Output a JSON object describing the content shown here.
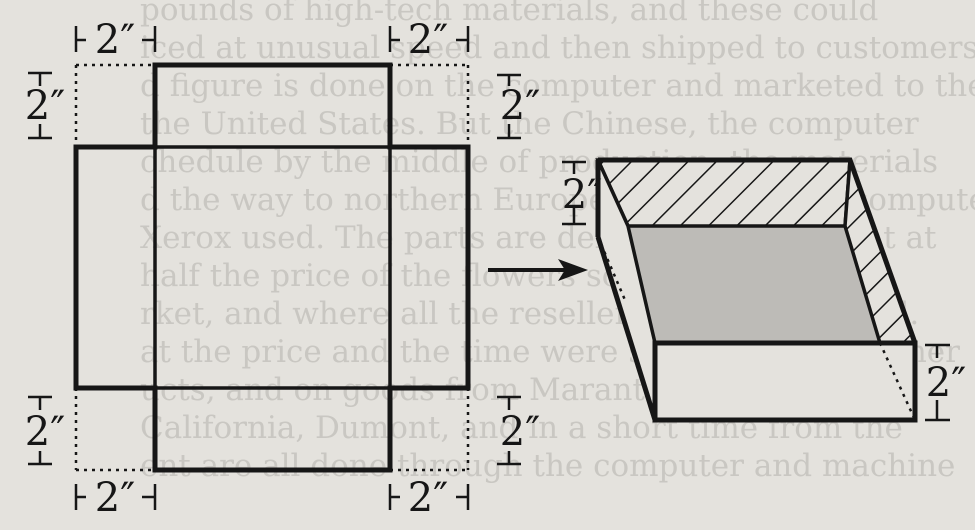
{
  "labels": {
    "top_left_width": "2″",
    "top_right_width": "2″",
    "left_top_height": "2″",
    "right_top_height": "2″",
    "left_bottom_height": "2″",
    "right_bottom_height": "2″",
    "bottom_left_width": "2″",
    "bottom_right_width": "2″",
    "box_wall_height": "2″",
    "box_side_height": "2″"
  },
  "colors": {
    "background": "#e4e2dd",
    "ink": "#161616",
    "box_floor": "#bdbbb7",
    "bleed_text": "#c9c7c2"
  },
  "background_text_lines": [
    "pounds of high-tech materials, and these could",
    "iced at unusual speed and then shipped to customers.",
    "d figure is done on the computer and marketed to the",
    "the United States. But the Chinese, the computer",
    "chedule by the middle of production, the materials",
    "d the way to northern Europe, are almost all computer",
    "Xerox used. The parts are delivered to the plant at",
    "half the price of the flowers sold for the airport,",
    "rket, and where all the reseller buyers are based.",
    "at the price and the time were so precise. The other",
    "ucts, and on goods from Marantz and Tokyo for",
    "California, Dumont, and in a short time from the",
    "ent are all done through the computer and machine"
  ]
}
